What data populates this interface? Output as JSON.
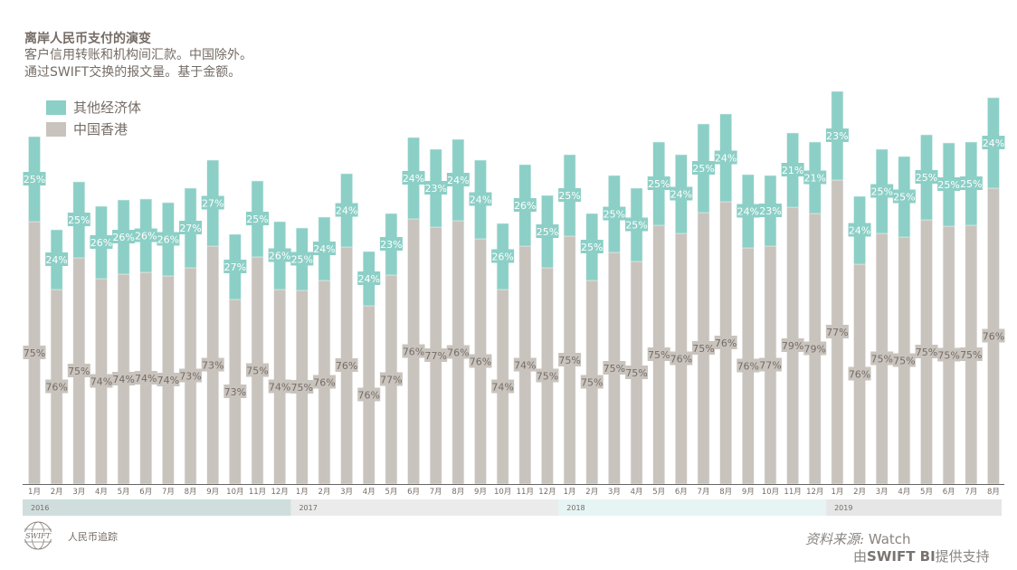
{
  "title": "离岸人民币支付的演变",
  "subtitle_lines": [
    "客户信用转账和机构间汇款。中国除外。",
    "通过SWIFT交换的报文量。基于金额。"
  ],
  "footer": {
    "logo_text": "SWIFT",
    "label": "人民币追踪",
    "source_label": "资料来源:",
    "source_value": "Watch",
    "support_prefix": "由",
    "support_brand": "SWIFT BI",
    "support_suffix": "提供支持"
  },
  "colors": {
    "others": "#8ccfc6",
    "hong_kong": "#c9c3bd",
    "year_2016": "#cfdedd",
    "year_2017": "#ebebeb",
    "year_2018": "#e6f4f3",
    "year_2019": "#e6e6e6"
  },
  "chart_data": {
    "type": "bar",
    "stacked": true,
    "legend": {
      "placement": "top-left",
      "entries": [
        "其他经济体",
        "中国香港"
      ]
    },
    "years": [
      {
        "label": "2016",
        "months": 12
      },
      {
        "label": "2017",
        "months": 12
      },
      {
        "label": "2018",
        "months": 12
      },
      {
        "label": "2019",
        "months": 8
      }
    ],
    "categories": [
      "1月",
      "2月",
      "3月",
      "4月",
      "5月",
      "6月",
      "7月",
      "8月",
      "9月",
      "10月",
      "11月",
      "12月",
      "1月",
      "2月",
      "3月",
      "4月",
      "5月",
      "6月",
      "7月",
      "8月",
      "9月",
      "10月",
      "11月",
      "12月",
      "1月",
      "2月",
      "3月",
      "4月",
      "5月",
      "6月",
      "7月",
      "8月",
      "9月",
      "10月",
      "11月",
      "12月",
      "1月",
      "2月",
      "3月",
      "4月",
      "5月",
      "6月",
      "7月",
      "8月"
    ],
    "y_axis_shown": false,
    "series": [
      {
        "name": "中国香港",
        "key": "hong_kong",
        "relative_volume": [
          290,
          215,
          250,
          227,
          232,
          234,
          230,
          239,
          263,
          204,
          251,
          215,
          214,
          225,
          262,
          197,
          231,
          293,
          284,
          291,
          271,
          215,
          263,
          239,
          274,
          225,
          256,
          246,
          286,
          277,
          300,
          312,
          261,
          263,
          306,
          299,
          336,
          243,
          277,
          273,
          292,
          285,
          286,
          327
        ],
        "share_pct": [
          75,
          76,
          75,
          74,
          74,
          74,
          74,
          73,
          73,
          73,
          75,
          74,
          75,
          76,
          76,
          76,
          77,
          76,
          77,
          76,
          76,
          74,
          74,
          75,
          75,
          75,
          75,
          75,
          75,
          76,
          75,
          76,
          76,
          77,
          79,
          79,
          77,
          76,
          75,
          75,
          75,
          75,
          75,
          76
        ]
      },
      {
        "name": "其他经济体",
        "key": "others",
        "relative_volume": [
          94,
          66,
          84,
          80,
          82,
          81,
          81,
          88,
          95,
          72,
          84,
          75,
          69,
          70,
          81,
          60,
          68,
          90,
          86,
          90,
          87,
          73,
          90,
          80,
          90,
          74,
          85,
          81,
          92,
          87,
          98,
          97,
          81,
          78,
          82,
          79,
          98,
          75,
          93,
          89,
          94,
          92,
          92,
          100
        ],
        "share_pct": [
          25,
          24,
          25,
          26,
          26,
          26,
          26,
          27,
          27,
          27,
          25,
          26,
          25,
          24,
          24,
          24,
          23,
          24,
          23,
          24,
          24,
          26,
          26,
          25,
          25,
          25,
          25,
          25,
          25,
          24,
          25,
          24,
          24,
          23,
          21,
          21,
          23,
          24,
          25,
          25,
          25,
          25,
          25,
          24
        ]
      }
    ]
  }
}
